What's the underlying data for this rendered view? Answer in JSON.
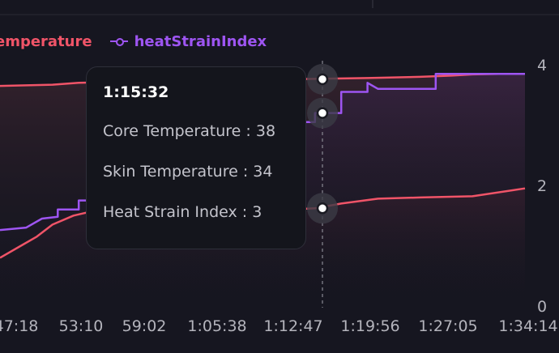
{
  "colors": {
    "background": "#161620",
    "coreTemperature": "#f05468",
    "heatStrainIndex": "#9e55f2",
    "axisText": "#b4b4bc",
    "grid": "#2a2a34"
  },
  "legend": [
    {
      "label": "emperature",
      "color": "#f05468"
    },
    {
      "label": "heatStrainIndex",
      "color": "#9e55f2"
    }
  ],
  "tooltip": {
    "time": "1:15:32",
    "rows": [
      {
        "label": "Core Temperature : 38"
      },
      {
        "label": "Skin Temperature : 34"
      },
      {
        "label": "Heat Strain Index : 3"
      }
    ]
  },
  "chart_data": {
    "type": "line",
    "x_ticks": [
      "47:18",
      "53:10",
      "59:02",
      "1:05:38",
      "1:12:47",
      "1:19:56",
      "1:27:05",
      "1:34:14"
    ],
    "y_right_ticks": [
      "4",
      "2",
      "0"
    ],
    "y_right_range": [
      0,
      4
    ],
    "hover_x": "1:15:32",
    "series": [
      {
        "name": "coreTemperature",
        "color": "#f05468",
        "points": [
          [
            0.0,
            3.65
          ],
          [
            0.1,
            3.67
          ],
          [
            0.15,
            3.7
          ],
          [
            0.25,
            3.72
          ],
          [
            0.3,
            3.74
          ],
          [
            0.4,
            3.75
          ],
          [
            0.55,
            3.76
          ],
          [
            0.7,
            3.78
          ],
          [
            0.8,
            3.8
          ],
          [
            0.86,
            3.82
          ],
          [
            0.9,
            3.84
          ],
          [
            0.95,
            3.85
          ],
          [
            1.0,
            3.85
          ]
        ]
      },
      {
        "name": "heatStrainIndex",
        "color": "#9e55f2",
        "points": [
          [
            0.0,
            1.26
          ],
          [
            0.05,
            1.3
          ],
          [
            0.08,
            1.45
          ],
          [
            0.11,
            1.48
          ],
          [
            0.11,
            1.6
          ],
          [
            0.15,
            1.6
          ],
          [
            0.15,
            1.75
          ],
          [
            0.18,
            1.75
          ],
          [
            0.18,
            1.95
          ],
          [
            0.2,
            1.95
          ],
          [
            0.2,
            2.05
          ],
          [
            0.4,
            2.85
          ],
          [
            0.47,
            2.85
          ],
          [
            0.47,
            3.0
          ],
          [
            0.55,
            3.0
          ],
          [
            0.55,
            3.2
          ],
          [
            0.57,
            3.2
          ],
          [
            0.58,
            3.05
          ],
          [
            0.6,
            3.05
          ],
          [
            0.6,
            3.2
          ],
          [
            0.65,
            3.2
          ],
          [
            0.65,
            3.55
          ],
          [
            0.7,
            3.55
          ],
          [
            0.7,
            3.7
          ],
          [
            0.72,
            3.6
          ],
          [
            0.83,
            3.6
          ],
          [
            0.83,
            3.85
          ],
          [
            0.85,
            3.85
          ],
          [
            1.0,
            3.85
          ]
        ]
      },
      {
        "name": "skinTemperature",
        "color": "#f05468",
        "points": [
          [
            0.0,
            0.8
          ],
          [
            0.04,
            1.0
          ],
          [
            0.07,
            1.15
          ],
          [
            0.1,
            1.35
          ],
          [
            0.14,
            1.5
          ],
          [
            0.18,
            1.58
          ],
          [
            0.22,
            1.63
          ],
          [
            0.4,
            1.45
          ],
          [
            0.45,
            1.55
          ],
          [
            0.5,
            1.58
          ],
          [
            0.55,
            1.6
          ],
          [
            0.6,
            1.62
          ],
          [
            0.65,
            1.7
          ],
          [
            0.72,
            1.78
          ],
          [
            0.8,
            1.8
          ],
          [
            0.9,
            1.82
          ],
          [
            1.0,
            1.95
          ]
        ]
      }
    ]
  }
}
